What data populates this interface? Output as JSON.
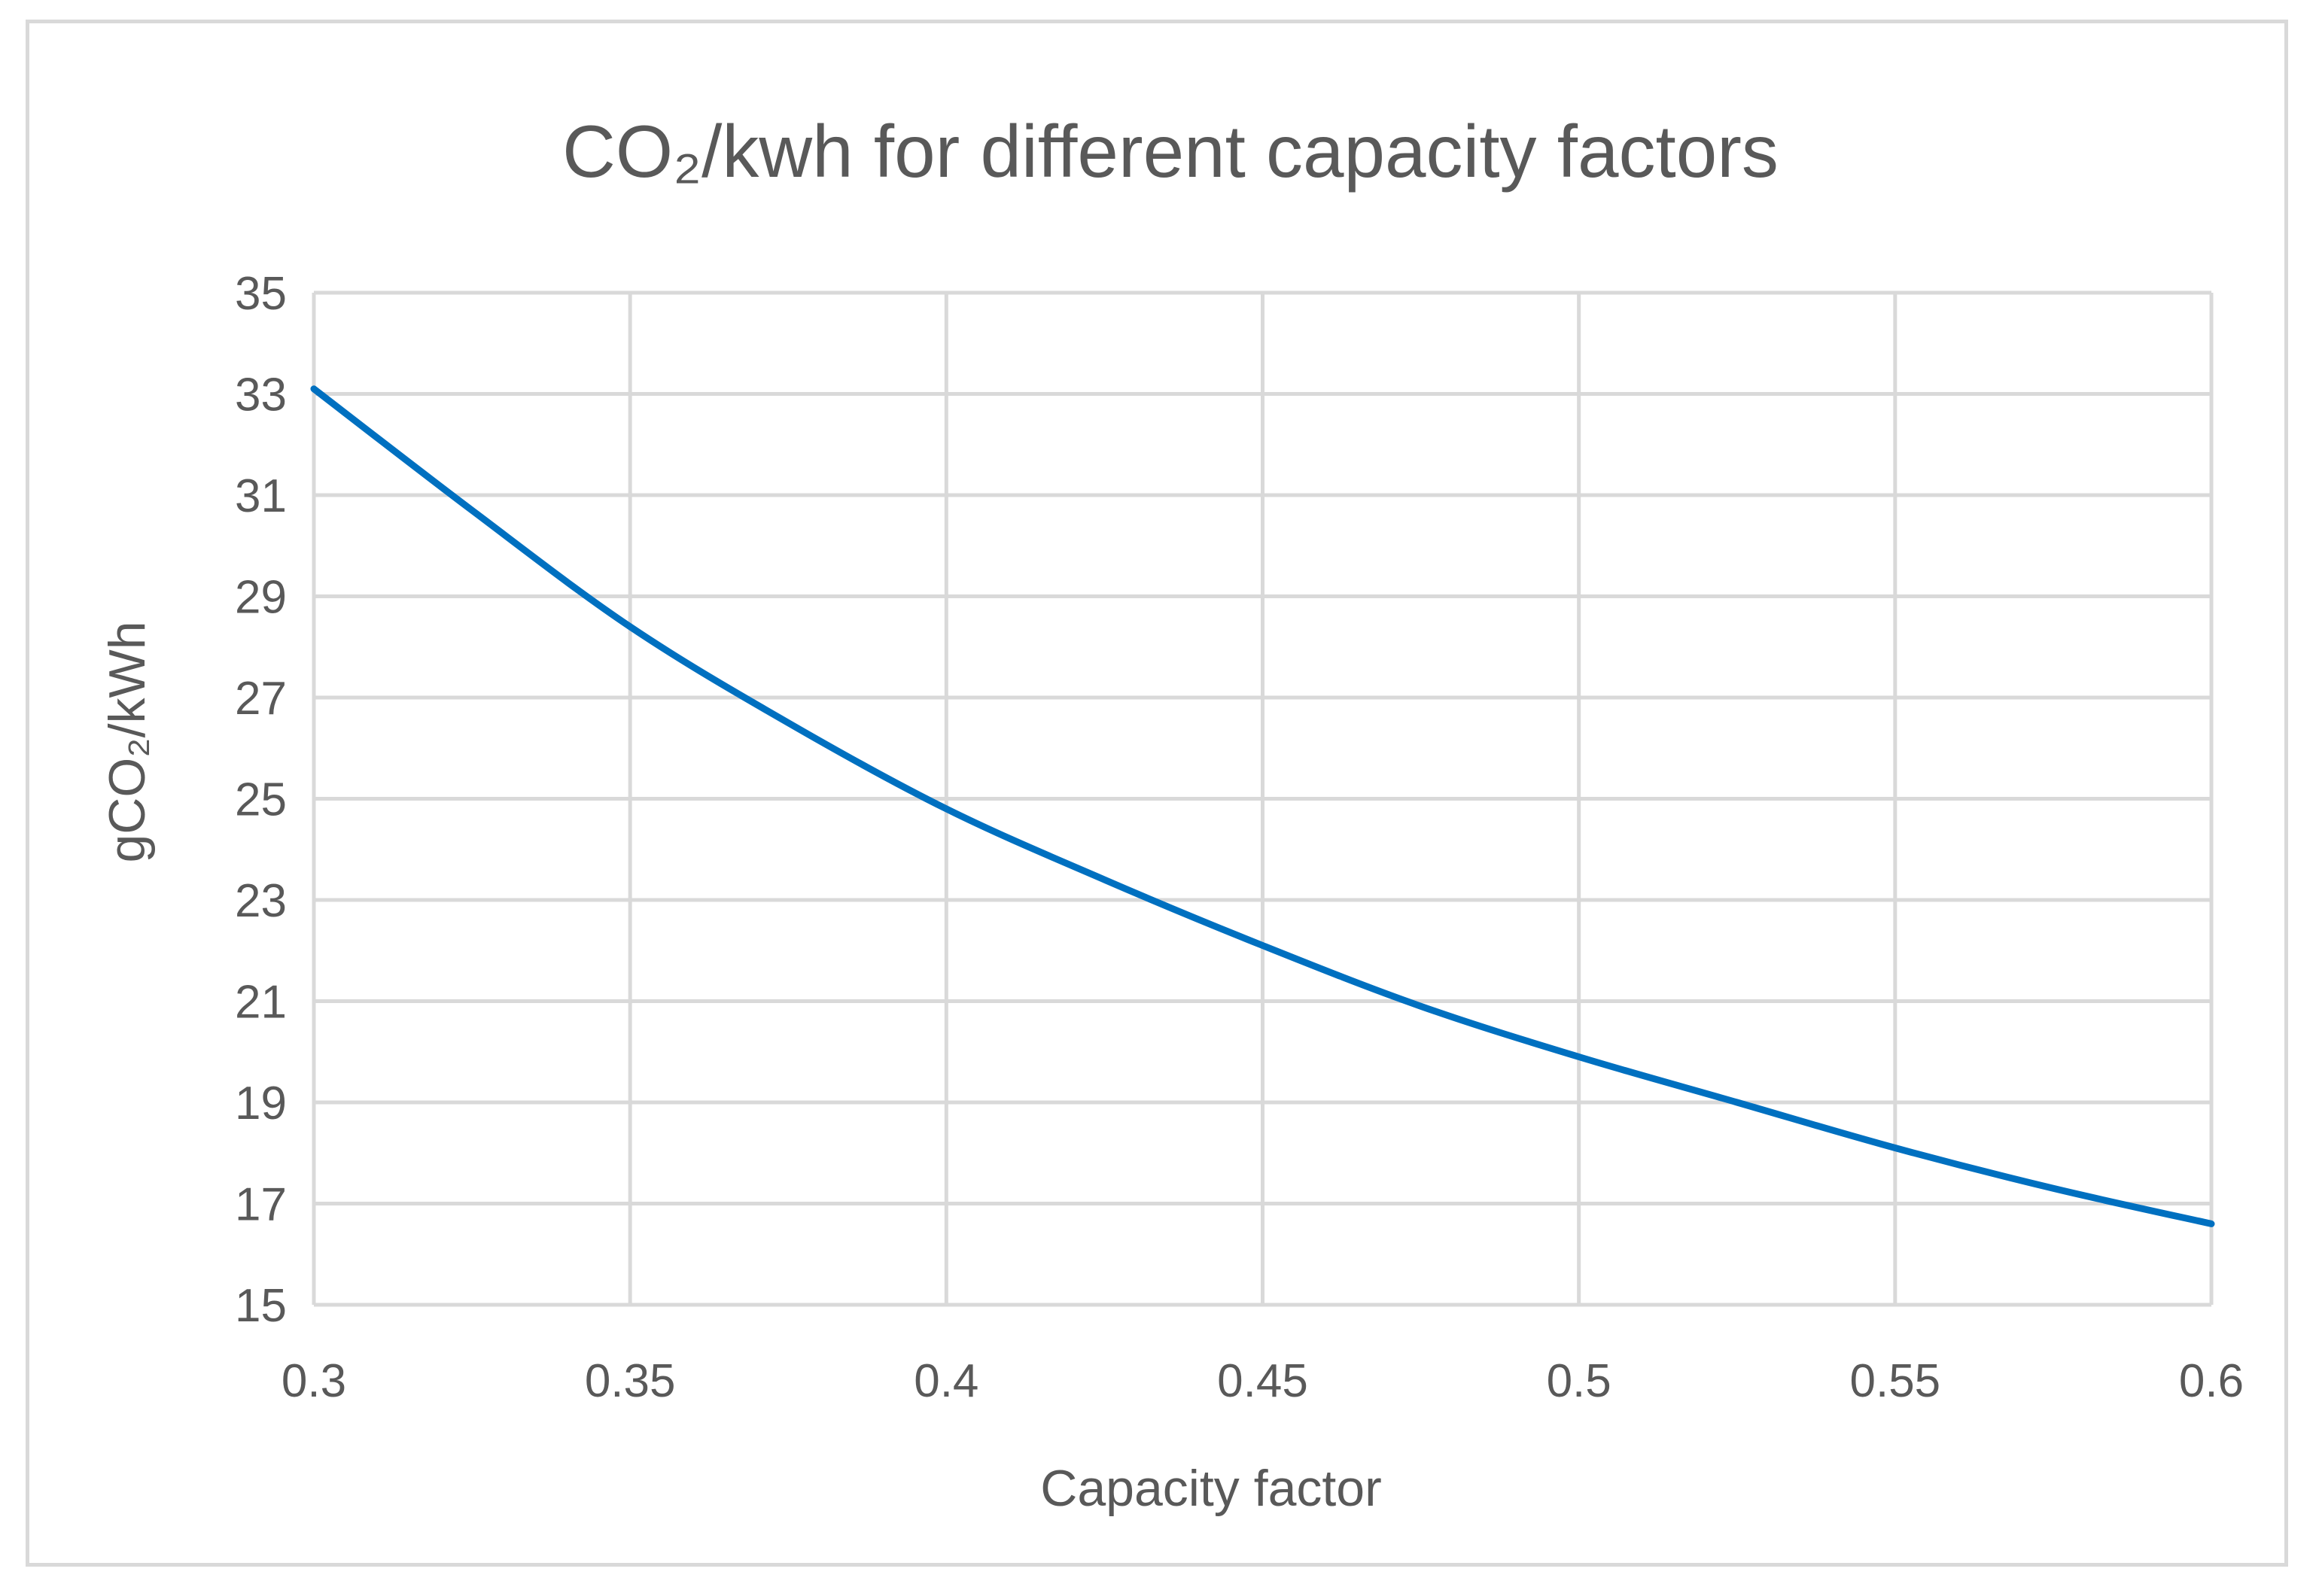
{
  "chart_data": {
    "type": "line",
    "title": "CO₂/kwh for different capacity factors",
    "xlabel": "Capacity factor",
    "ylabel": "gCO₂/kWh",
    "xlim": [
      0.3,
      0.6
    ],
    "ylim": [
      15,
      35
    ],
    "x_ticks": [
      0.3,
      0.35,
      0.4,
      0.45,
      0.5,
      0.55,
      0.6
    ],
    "x_tick_labels": [
      "0.3",
      "0.35",
      "0.4",
      "0.45",
      "0.5",
      "0.55",
      "0.6"
    ],
    "y_ticks": [
      15,
      17,
      19,
      21,
      23,
      25,
      27,
      29,
      31,
      33,
      35
    ],
    "y_tick_labels": [
      "15",
      "17",
      "19",
      "21",
      "23",
      "25",
      "27",
      "29",
      "31",
      "33",
      "35"
    ],
    "grid": true,
    "legend": "none",
    "series": [
      {
        "name": "gCO₂/kWh",
        "color": "#0070c0",
        "x": [
          0.3,
          0.325,
          0.35,
          0.375,
          0.4,
          0.425,
          0.45,
          0.475,
          0.5,
          0.525,
          0.55,
          0.575,
          0.6
        ],
        "values": [
          33.1,
          30.7,
          28.4,
          26.5,
          24.8,
          23.4,
          22.1,
          20.9,
          19.9,
          19.0,
          18.1,
          17.3,
          16.6
        ]
      }
    ]
  }
}
